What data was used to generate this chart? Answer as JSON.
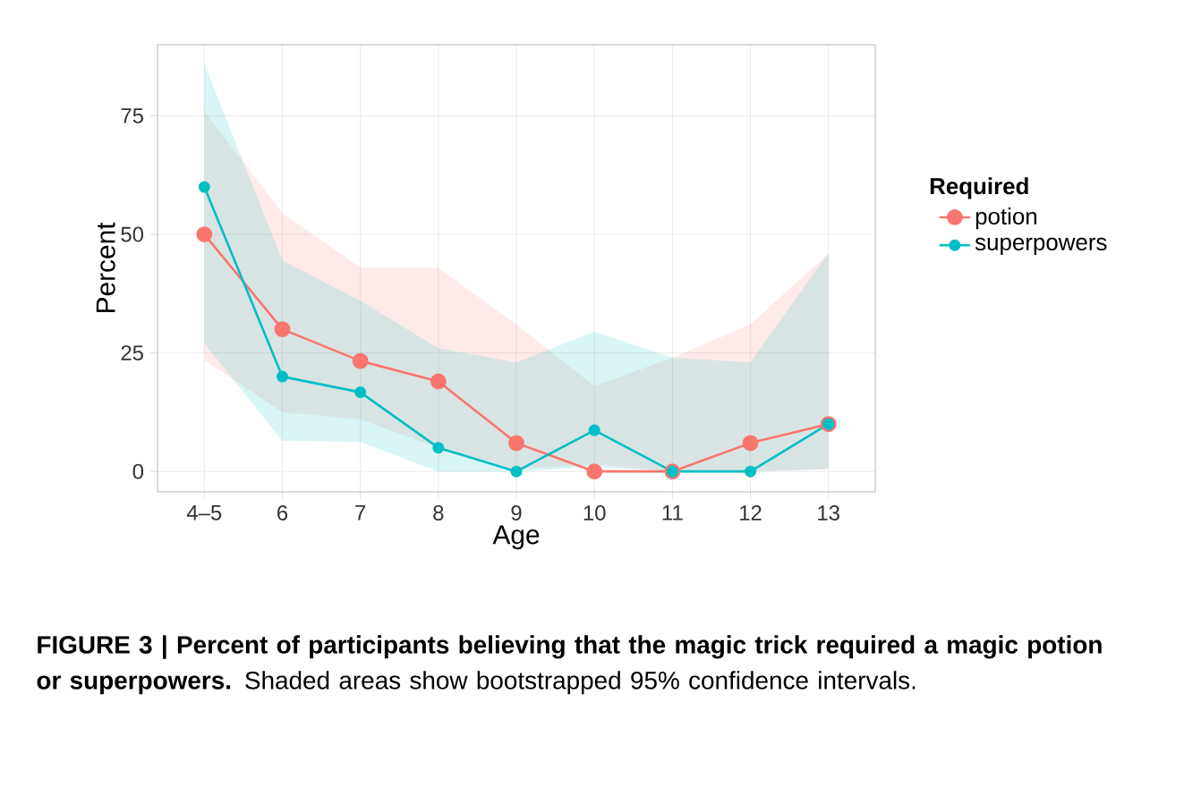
{
  "chart_data": {
    "type": "line",
    "xlabel": "Age",
    "ylabel": "Percent",
    "legend_title": "Required",
    "categories": [
      "4–5",
      "6",
      "7",
      "8",
      "9",
      "10",
      "11",
      "12",
      "13"
    ],
    "series": [
      {
        "name": "potion",
        "color": "#f8766d",
        "values": [
          50,
          30,
          23.3,
          19,
          6,
          0,
          0,
          6,
          10
        ],
        "lower": [
          23.5,
          12.5,
          11,
          5,
          0.5,
          1.5,
          0,
          0,
          0.5
        ],
        "upper": [
          76,
          54.5,
          43,
          43,
          31,
          18,
          24,
          31,
          46
        ]
      },
      {
        "name": "superpowers",
        "color": "#00bfc4",
        "values": [
          60,
          20,
          16.7,
          5,
          0,
          8.7,
          0,
          0,
          10
        ],
        "lower": [
          27,
          6.5,
          6.2,
          0,
          0,
          1,
          0,
          0,
          0.5
        ],
        "upper": [
          86,
          44.5,
          36,
          26,
          23,
          29.5,
          24,
          23,
          46
        ]
      }
    ],
    "ylim": [
      -4.3,
      90
    ],
    "yticks": [
      0,
      25,
      50,
      75
    ],
    "grid": true,
    "legend": "right",
    "marker": "circle",
    "line_style": "solid",
    "annotations": [
      "**FIGURE 3 | Percent of participants believing that the magic trick required a magic potion or superpowers.** Shaded areas show bootstrapped 95% confidence intervals."
    ]
  }
}
